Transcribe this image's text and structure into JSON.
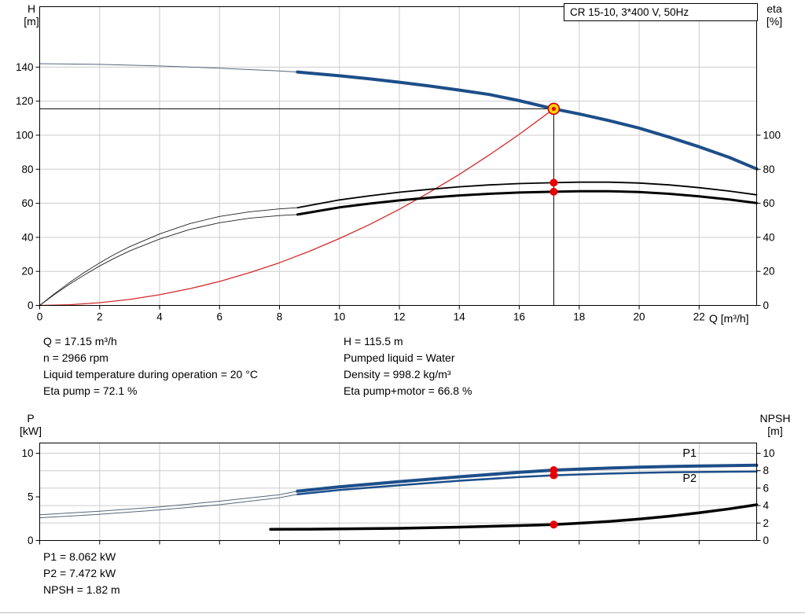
{
  "info_panel": {
    "left": [
      "Q = 17.15 m³/h",
      "n = 2966 rpm",
      "Liquid temperature during operation = 20 °C",
      "Eta pump = 72.1 %"
    ],
    "right": [
      "H = 115.5 m",
      "Pumped liquid = Water",
      "Density = 998.2 kg/m³",
      "Eta pump+motor = 66.8 %"
    ]
  },
  "results_panel": {
    "lines": [
      "P1 = 8.062 kW",
      "P2 = 7.472 kW",
      "NPSH = 1.82 m"
    ]
  },
  "chart_data": [
    {
      "type": "line",
      "title": "CR 15-10, 3*400 V, 50Hz",
      "ylabel_left_line1": "H",
      "ylabel_left_line2": "[m]",
      "ylabel_right_line1": "eta",
      "ylabel_right_line2": "[%]",
      "xlabel": "Q [m³/h]",
      "xlim": [
        0,
        23.92
      ],
      "ylim": [
        0,
        175.5
      ],
      "x_tick_labels": true,
      "x_ticks": [
        0,
        2,
        4,
        6,
        8,
        10,
        12,
        14,
        16,
        18,
        20,
        22
      ],
      "y_ticks_left": [
        0,
        20,
        40,
        60,
        80,
        100,
        120,
        140
      ],
      "y_ticks_right": [
        0,
        20,
        40,
        60,
        80,
        100
      ],
      "grid_x": [
        2,
        4,
        6,
        8,
        10,
        12,
        14,
        16,
        18,
        20,
        22
      ],
      "grid_y": [
        20,
        40,
        60,
        80,
        100,
        120,
        140
      ],
      "grid_color": "#cccccc",
      "series": [
        {
          "name": "crosshair-horizontal",
          "color": "#000000",
          "width": 1,
          "points": [
            [
              0,
              115.5
            ],
            [
              17.15,
              115.5
            ]
          ]
        },
        {
          "name": "crosshair-vertical",
          "color": "#000000",
          "width": 1,
          "points": [
            [
              17.15,
              0
            ],
            [
              17.15,
              115.5
            ]
          ]
        },
        {
          "name": "system-curve",
          "color": "#d42a2a",
          "width": 1.3,
          "points": [
            [
              0,
              0
            ],
            [
              1,
              0.4
            ],
            [
              2,
              1.6
            ],
            [
              3,
              3.5
            ],
            [
              4,
              6.3
            ],
            [
              5,
              9.8
            ],
            [
              6,
              14.1
            ],
            [
              7,
              19.2
            ],
            [
              8,
              25.1
            ],
            [
              9,
              31.8
            ],
            [
              10,
              39.3
            ],
            [
              11,
              47.5
            ],
            [
              12,
              56.5
            ],
            [
              13,
              66.4
            ],
            [
              14,
              77
            ],
            [
              15,
              88.4
            ],
            [
              16,
              100.5
            ],
            [
              17,
              113.5
            ],
            [
              17.15,
              115.5
            ]
          ]
        },
        {
          "name": "eta-pump-low-flow",
          "color": "#222222",
          "width": 0.9,
          "points": [
            [
              0,
              0
            ],
            [
              0.5,
              7
            ],
            [
              1,
              13.5
            ],
            [
              1.5,
              19.5
            ],
            [
              2,
              25
            ],
            [
              2.5,
              30
            ],
            [
              3,
              34.5
            ],
            [
              4,
              42
            ],
            [
              5,
              48
            ],
            [
              6,
              52.3
            ],
            [
              7,
              55
            ],
            [
              8,
              56.7
            ],
            [
              8.6,
              57.4
            ]
          ]
        },
        {
          "name": "eta-pump-motor-low-flow",
          "color": "#222222",
          "width": 0.9,
          "points": [
            [
              0,
              0
            ],
            [
              0.5,
              6.5
            ],
            [
              1,
              12.5
            ],
            [
              1.5,
              18
            ],
            [
              2,
              23.2
            ],
            [
              2.5,
              27.8
            ],
            [
              3,
              32
            ],
            [
              4,
              39
            ],
            [
              5,
              44.6
            ],
            [
              6,
              48.6
            ],
            [
              7,
              51.2
            ],
            [
              8,
              52.8
            ],
            [
              8.6,
              53.4
            ]
          ]
        },
        {
          "name": "eta-pump-curve",
          "color": "#000000",
          "width": 1.8,
          "points": [
            [
              8.6,
              57.4
            ],
            [
              10,
              62
            ],
            [
              11,
              64.4
            ],
            [
              12,
              66.5
            ],
            [
              13,
              68.2
            ],
            [
              14,
              69.7
            ],
            [
              15,
              70.8
            ],
            [
              16,
              71.6
            ],
            [
              17.15,
              72.1
            ],
            [
              18,
              72.4
            ],
            [
              19,
              72.4
            ],
            [
              20,
              71.9
            ],
            [
              21,
              70.8
            ],
            [
              22,
              69.2
            ],
            [
              23,
              67.2
            ],
            [
              23.92,
              65
            ]
          ]
        },
        {
          "name": "eta-pump-motor-curve",
          "color": "#000000",
          "width": 3,
          "points": [
            [
              8.6,
              53.4
            ],
            [
              10,
              57.6
            ],
            [
              11,
              59.8
            ],
            [
              12,
              61.7
            ],
            [
              13,
              63.3
            ],
            [
              14,
              64.6
            ],
            [
              15,
              65.6
            ],
            [
              16,
              66.3
            ],
            [
              17.15,
              66.8
            ],
            [
              18,
              67.1
            ],
            [
              19,
              67.1
            ],
            [
              20,
              66.6
            ],
            [
              21,
              65.6
            ],
            [
              22,
              64.1
            ],
            [
              23,
              62.2
            ],
            [
              23.92,
              60.2
            ]
          ]
        },
        {
          "name": "head-low-flow",
          "color": "#55677c",
          "width": 1,
          "points": [
            [
              0,
              142
            ],
            [
              2,
              141.6
            ],
            [
              4,
              140.7
            ],
            [
              6,
              139.4
            ],
            [
              8,
              137.7
            ],
            [
              8.6,
              137.1
            ]
          ]
        },
        {
          "name": "head-curve",
          "color": "#1d4e89",
          "width": 4,
          "points": [
            [
              8.6,
              137.1
            ],
            [
              10,
              134.9
            ],
            [
              11,
              133.1
            ],
            [
              12,
              131.1
            ],
            [
              13,
              128.9
            ],
            [
              14,
              126.5
            ],
            [
              15,
              123.9
            ],
            [
              16,
              120.3
            ],
            [
              17.15,
              115.5
            ],
            [
              18,
              112.5
            ],
            [
              19,
              108.6
            ],
            [
              20,
              104.2
            ],
            [
              21,
              98.9
            ],
            [
              22,
              93.2
            ],
            [
              23,
              87
            ],
            [
              23.92,
              80.2
            ]
          ]
        }
      ],
      "markers": [
        {
          "name": "eta-pump-point",
          "x": 17.15,
          "y": 72.1,
          "r": 5,
          "fill": "#e60000"
        },
        {
          "name": "eta-pump-motor-point",
          "x": 17.15,
          "y": 66.8,
          "r": 5,
          "fill": "#e60000"
        },
        {
          "name": "duty-point-outer",
          "x": 17.15,
          "y": 115.5,
          "r": 7,
          "fill": "#ffd400",
          "stroke": "#cc0000",
          "stroke_width": 1.6
        },
        {
          "name": "duty-point-inner",
          "x": 17.15,
          "y": 115.5,
          "r": 2.6,
          "fill": "#e60000"
        }
      ],
      "texts": []
    },
    {
      "type": "line",
      "title": "",
      "ylabel_left_line1": "P",
      "ylabel_left_line2": "[kW]",
      "ylabel_right_line1": "NPSH",
      "ylabel_right_line2": "[m]",
      "xlabel": "",
      "xlim": [
        0,
        23.92
      ],
      "ylim": [
        0,
        11.17
      ],
      "x_tick_labels": false,
      "x_ticks": [
        0,
        2,
        4,
        6,
        8,
        10,
        12,
        14,
        16,
        18,
        20,
        22
      ],
      "y_ticks_left": [
        0,
        5,
        10
      ],
      "y_ticks_right": [
        0,
        2,
        4,
        6,
        8,
        10
      ],
      "grid_x": [
        2,
        4,
        6,
        8,
        10,
        12,
        14,
        16,
        18,
        20,
        22
      ],
      "grid_y": [
        2,
        4,
        6,
        8,
        10
      ],
      "grid_color": "#cccccc",
      "series": [
        {
          "name": "p1-low-flow",
          "color": "#55677c",
          "width": 1,
          "points": [
            [
              0,
              2.95
            ],
            [
              2,
              3.35
            ],
            [
              4,
              3.85
            ],
            [
              6,
              4.5
            ],
            [
              8,
              5.25
            ],
            [
              8.6,
              5.65
            ]
          ]
        },
        {
          "name": "p2-low-flow",
          "color": "#55677c",
          "width": 1,
          "points": [
            [
              0,
              2.6
            ],
            [
              2,
              3.0
            ],
            [
              4,
              3.5
            ],
            [
              6,
              4.1
            ],
            [
              8,
              4.9
            ],
            [
              8.6,
              5.3
            ]
          ]
        },
        {
          "name": "npsh-curve",
          "color": "#000000",
          "width": 3.5,
          "points": [
            [
              7.7,
              1.28
            ],
            [
              9,
              1.3
            ],
            [
              10,
              1.33
            ],
            [
              11,
              1.36
            ],
            [
              12,
              1.4
            ],
            [
              13,
              1.46
            ],
            [
              14,
              1.53
            ],
            [
              15,
              1.62
            ],
            [
              16,
              1.71
            ],
            [
              17.15,
              1.82
            ],
            [
              18,
              1.98
            ],
            [
              19,
              2.18
            ],
            [
              20,
              2.45
            ],
            [
              21,
              2.78
            ],
            [
              22,
              3.18
            ],
            [
              23,
              3.62
            ],
            [
              23.92,
              4.1
            ]
          ]
        },
        {
          "name": "p1-curve",
          "color": "#1d4e89",
          "width": 4,
          "points": [
            [
              8.6,
              5.65
            ],
            [
              10,
              6.15
            ],
            [
              12,
              6.75
            ],
            [
              14,
              7.3
            ],
            [
              16,
              7.82
            ],
            [
              17.15,
              8.062
            ],
            [
              18,
              8.18
            ],
            [
              19,
              8.3
            ],
            [
              20,
              8.4
            ],
            [
              21,
              8.48
            ],
            [
              22,
              8.54
            ],
            [
              23,
              8.58
            ],
            [
              23.92,
              8.62
            ]
          ]
        },
        {
          "name": "p2-curve",
          "color": "#1d4e89",
          "width": 2.5,
          "points": [
            [
              8.6,
              5.3
            ],
            [
              10,
              5.78
            ],
            [
              12,
              6.33
            ],
            [
              14,
              6.85
            ],
            [
              16,
              7.27
            ],
            [
              17.15,
              7.472
            ],
            [
              18,
              7.57
            ],
            [
              19,
              7.67
            ],
            [
              20,
              7.75
            ],
            [
              21,
              7.81
            ],
            [
              22,
              7.85
            ],
            [
              23,
              7.88
            ],
            [
              23.92,
              7.9
            ]
          ]
        }
      ],
      "markers": [
        {
          "name": "p1-point",
          "x": 17.15,
          "y": 8.062,
          "r": 5,
          "fill": "#e60000"
        },
        {
          "name": "p2-point",
          "x": 17.15,
          "y": 7.472,
          "r": 5,
          "fill": "#e60000"
        },
        {
          "name": "npsh-point",
          "x": 17.15,
          "y": 1.82,
          "r": 5,
          "fill": "#e60000"
        }
      ],
      "texts": [
        {
          "name": "p1-label",
          "x": 21.45,
          "y": 9.6,
          "text": "P1",
          "color": "#1d4e89",
          "size": 14.5
        },
        {
          "name": "p2-label",
          "x": 21.45,
          "y": 6.7,
          "text": "P2",
          "color": "#1d4e89",
          "size": 14.5
        }
      ]
    }
  ]
}
